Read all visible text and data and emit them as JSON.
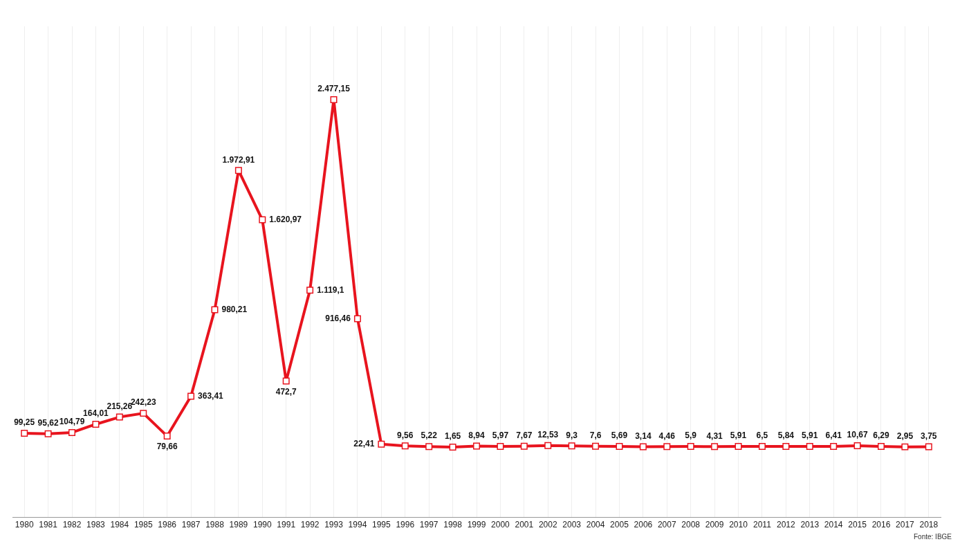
{
  "chart_data": {
    "type": "line",
    "categories": [
      "1980",
      "1981",
      "1982",
      "1983",
      "1984",
      "1985",
      "1986",
      "1987",
      "1988",
      "1989",
      "1990",
      "1991",
      "1992",
      "1993",
      "1994",
      "1995",
      "1996",
      "1997",
      "1998",
      "1999",
      "2000",
      "2001",
      "2002",
      "2003",
      "2004",
      "2005",
      "2006",
      "2007",
      "2008",
      "2009",
      "2010",
      "2011",
      "2012",
      "2013",
      "2014",
      "2015",
      "2016",
      "2017",
      "2018"
    ],
    "series": [
      {
        "color": "#e8141e",
        "values": [
          99.25,
          95.62,
          104.79,
          164.01,
          215.26,
          242.23,
          79.66,
          363.41,
          980.21,
          1972.91,
          1620.97,
          472.7,
          1119.1,
          2477.15,
          916.46,
          22.41,
          9.56,
          5.22,
          1.65,
          8.94,
          5.97,
          7.67,
          12.53,
          9.3,
          7.6,
          5.69,
          3.14,
          4.46,
          5.9,
          4.31,
          5.91,
          6.5,
          5.84,
          5.91,
          6.41,
          10.67,
          6.29,
          2.95,
          3.75
        ],
        "value_labels": [
          "99,25",
          "95,62",
          "104,79",
          "164,01",
          "215,26",
          "242,23",
          "79,66",
          "363,41",
          "980,21",
          "1.972,91",
          "1.620,97",
          "472,7",
          "1.119,1",
          "2.477,15",
          "916,46",
          "22,41",
          "9,56",
          "5,22",
          "1,65",
          "8,94",
          "5,97",
          "7,67",
          "12,53",
          "9,3",
          "7,6",
          "5,69",
          "3,14",
          "4,46",
          "5,9",
          "4,31",
          "5,91",
          "6,5",
          "5,84",
          "5,91",
          "6,41",
          "10,67",
          "6,29",
          "2,95",
          "3,75"
        ]
      }
    ],
    "grid": "x",
    "marker": "square",
    "line_style": "solid",
    "legend": false,
    "annotations": [
      "Fonte: IBGE"
    ]
  }
}
